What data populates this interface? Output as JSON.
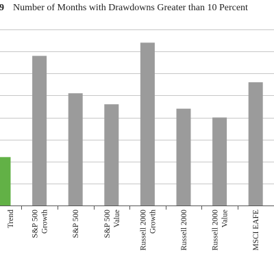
{
  "figure_number": "9",
  "chart_data": {
    "type": "bar",
    "title": "Number of Months with Drawdowns Greater than 10 Percent",
    "xlabel": "",
    "ylabel": "",
    "categories": [
      [
        "",
        "Trend"
      ],
      [
        "S&P 500",
        "Growth"
      ],
      [
        "S&P 500",
        ""
      ],
      [
        "S&P 500",
        "Value"
      ],
      [
        "Russell 2000",
        "Growth"
      ],
      [
        "Russell 2000",
        ""
      ],
      [
        "Russell 2000",
        "Value"
      ],
      [
        "MSCI EAFE",
        ""
      ]
    ],
    "values": [
      22,
      68,
      51,
      46,
      74,
      44,
      40,
      56
    ],
    "colors": [
      "#62b146",
      "#9b9b9b",
      "#9b9b9b",
      "#9b9b9b",
      "#9b9b9b",
      "#9b9b9b",
      "#9b9b9b",
      "#9b9b9b"
    ],
    "ylim": [
      0,
      80
    ],
    "ytick_step": 10,
    "grid": true,
    "legend": "none"
  }
}
